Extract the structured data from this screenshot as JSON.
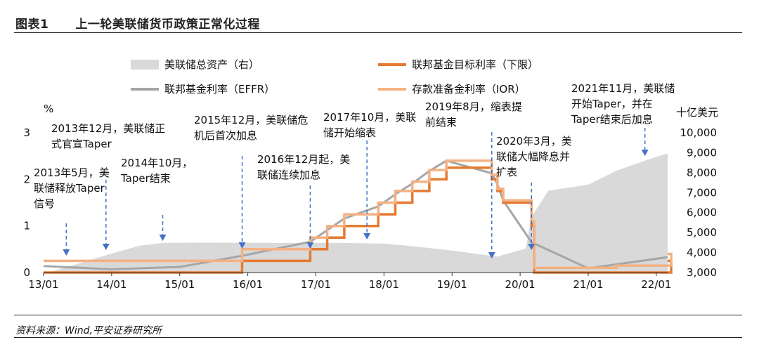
{
  "header": {
    "figure_no": "图表1",
    "title": "上一轮美联储货币政策正常化过程"
  },
  "source": "资料来源：Wind,平安证券研究所",
  "chart_data": {
    "type": "area+line",
    "title": "上一轮美联储货币政策正常化过程",
    "left_axis_unit": "%",
    "right_axis_unit": "十亿美元",
    "left_ylim": [
      0,
      3
    ],
    "right_ylim": [
      3000,
      10000
    ],
    "left_ticks": [
      "0",
      "1",
      "2",
      "3"
    ],
    "right_ticks": [
      "3,000",
      "4,000",
      "5,000",
      "6,000",
      "7,000",
      "8,000",
      "9,000",
      "10,000"
    ],
    "x_ticks": [
      "13/01",
      "14/01",
      "15/01",
      "16/01",
      "17/01",
      "18/01",
      "19/01",
      "20/01",
      "21/01",
      "22/01"
    ],
    "x_range": [
      "2013-01",
      "2022-03"
    ],
    "series": [
      {
        "name": "美联储总资产（右）",
        "kind": "area",
        "axis": "right",
        "color": "#d9d9d9",
        "x": [
          "2013-01",
          "2013-06",
          "2014-01",
          "2014-06",
          "2014-10",
          "2015-06",
          "2016-06",
          "2017-06",
          "2018-01",
          "2018-06",
          "2019-01",
          "2019-09",
          "2020-02",
          "2020-03",
          "2020-06",
          "2021-01",
          "2021-06",
          "2022-01",
          "2022-03"
        ],
        "values": [
          2950,
          3350,
          3950,
          4350,
          4480,
          4500,
          4480,
          4480,
          4450,
          4320,
          4100,
          3800,
          4200,
          5800,
          7100,
          7400,
          8100,
          8800,
          8950
        ]
      },
      {
        "name": "联邦基金目标利率（下限）",
        "kind": "step",
        "axis": "left",
        "color": "#e57a32",
        "x": [
          "2013-01",
          "2015-12",
          "2016-12",
          "2017-03",
          "2017-06",
          "2017-12",
          "2018-03",
          "2018-06",
          "2018-09",
          "2018-12",
          "2019-08",
          "2019-09",
          "2019-10",
          "2020-03",
          "2020-03-15",
          "2022-03",
          "2022-03-20"
        ],
        "values": [
          0,
          0.25,
          0.5,
          0.75,
          1.0,
          1.25,
          1.5,
          1.75,
          2.0,
          2.25,
          2.0,
          1.75,
          1.5,
          1.0,
          0,
          0,
          0.25
        ]
      },
      {
        "name": "联邦基金利率（EFFR）",
        "kind": "line",
        "axis": "left",
        "color": "#a6a6a6",
        "x": [
          "2013-01",
          "2014-01",
          "2015-01",
          "2015-12",
          "2016-12",
          "2017-03",
          "2017-06",
          "2017-12",
          "2018-03",
          "2018-06",
          "2018-09",
          "2018-12",
          "2019-08",
          "2019-09",
          "2019-10",
          "2020-03",
          "2021-01",
          "2022-03"
        ],
        "values": [
          0.14,
          0.07,
          0.12,
          0.36,
          0.66,
          0.91,
          1.16,
          1.42,
          1.68,
          1.91,
          2.18,
          2.4,
          2.13,
          1.9,
          1.55,
          0.65,
          0.09,
          0.33
        ]
      },
      {
        "name": "存款准备金利率（IOR）",
        "kind": "step",
        "axis": "left",
        "color": "#f4b183",
        "x": [
          "2013-01",
          "2015-12",
          "2016-12",
          "2017-03",
          "2017-06",
          "2017-12",
          "2018-03",
          "2018-06",
          "2018-09",
          "2018-12",
          "2019-08",
          "2019-09",
          "2019-10",
          "2020-03",
          "2020-03-15",
          "2021-06",
          "2022-03",
          "2022-03-20"
        ],
        "values": [
          0.25,
          0.5,
          0.75,
          1.0,
          1.25,
          1.5,
          1.75,
          1.95,
          2.2,
          2.4,
          2.1,
          1.8,
          1.55,
          1.1,
          0.1,
          0.15,
          0.15,
          0.4
        ]
      }
    ],
    "annotations": [
      {
        "text": "2013年5月，美联储释放Taper信号",
        "x": "2013-05"
      },
      {
        "text": "2013年12月，美联储正式官宣Taper",
        "x": "2013-12"
      },
      {
        "text": "2014年10月，Taper结束",
        "x": "2014-10"
      },
      {
        "text": "2015年12月，美联储危机后首次加息",
        "x": "2015-12"
      },
      {
        "text": "2016年12月起，美联储连续加息",
        "x": "2016-12"
      },
      {
        "text": "2017年10月，美联储开始缩表",
        "x": "2017-10"
      },
      {
        "text": "2019年8月，缩表提前结束",
        "x": "2019-08"
      },
      {
        "text": "2020年3月，美联储大幅降息并扩表",
        "x": "2020-03"
      },
      {
        "text": "2021年11月，美联储开始Taper，并在Taper结束后加息",
        "x": "2021-11"
      }
    ]
  },
  "annotation_lines": [
    [
      "2013年12月，美联储正",
      "式官宣Taper"
    ],
    [
      "2013年5月，美",
      "联储释放Taper",
      "信号"
    ],
    [
      "2014年10月，",
      "Taper结束"
    ],
    [
      "2015年12月，美联储危",
      "机后首次加息"
    ],
    [
      "2016年12月起，美",
      "联储连续加息"
    ],
    [
      "2017年10月，美联",
      "储开始缩表"
    ],
    [
      "2019年8月，缩表提",
      "前结束"
    ],
    [
      "2020年3月，美",
      "联储大幅降息并",
      "扩表"
    ],
    [
      "2021年11月，美联储",
      "开始Taper，并在",
      "Taper结束后加息"
    ]
  ]
}
